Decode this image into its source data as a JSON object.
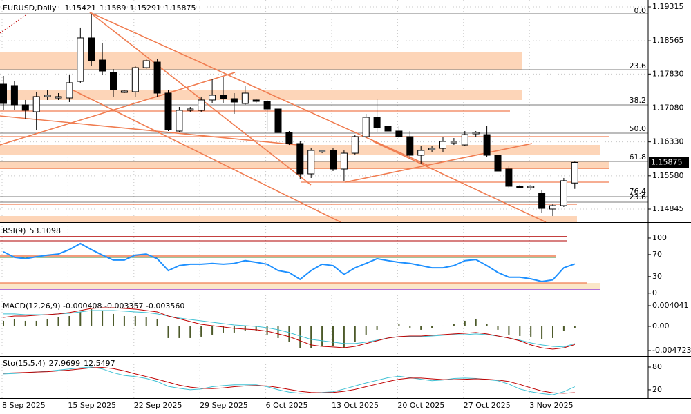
{
  "chart_data": [
    {
      "type": "candlestick",
      "title": "EURUSD,Daily",
      "categories": [
        "8 Sep 2025",
        null,
        null,
        null,
        null,
        null,
        "15 Sep 2025",
        null,
        null,
        null,
        null,
        null,
        "22 Sep 2025",
        null,
        null,
        null,
        null,
        null,
        "29 Sep 2025",
        null,
        null,
        null,
        null,
        null,
        "6 Oct 2025",
        null,
        null,
        null,
        null,
        null,
        "13 Oct 2025",
        null,
        null,
        null,
        null,
        null,
        "20 Oct 2025",
        null,
        null,
        null,
        null,
        null,
        "27 Oct 2025",
        null,
        null,
        null,
        null,
        null,
        "3 Nov 2025",
        null,
        null,
        null,
        null
      ],
      "open": [
        1.17606,
        1.17576,
        1.17149,
        1.16996,
        1.17332,
        1.17301,
        1.17301,
        1.17667,
        1.18629,
        1.1814,
        1.17865,
        1.17423,
        1.17439,
        1.17972,
        1.18094,
        1.17408,
        1.16569,
        1.17027,
        1.17027,
        1.17256,
        1.17362,
        1.17286,
        1.17179,
        1.17256,
        1.17225,
        1.17057,
        1.16538,
        1.16294,
        1.15623,
        1.16111,
        1.16141,
        1.1573,
        1.1608,
        1.16447,
        1.16874,
        1.16676,
        1.16569,
        1.16447,
        1.16035,
        1.16157,
        1.16187,
        1.16309,
        1.16263,
        1.16508,
        1.16492,
        1.16035,
        1.1573,
        1.15349,
        1.15318,
        1.15196,
        1.14845,
        1.14921,
        1.15421
      ],
      "high": [
        1.17789,
        1.17667,
        1.17256,
        1.17439,
        1.17484,
        1.17408,
        1.1782,
        1.18858,
        1.19163,
        1.18522,
        1.17942,
        1.17484,
        1.18018,
        1.18171,
        1.18171,
        1.17484,
        1.17103,
        1.17103,
        1.17332,
        1.17713,
        1.17759,
        1.17408,
        1.17561,
        1.17286,
        1.17256,
        1.17179,
        1.16569,
        1.1634,
        1.16187,
        1.16157,
        1.16187,
        1.16141,
        1.16492,
        1.1695,
        1.17286,
        1.16676,
        1.16676,
        1.16569,
        1.16233,
        1.16233,
        1.16447,
        1.16416,
        1.16569,
        1.16569,
        1.16676,
        1.1608,
        1.15806,
        1.1538,
        1.1538,
        1.15272,
        1.14952,
        1.15532,
        1.1589
      ],
      "low": [
        1.17027,
        1.17027,
        1.16843,
        1.16599,
        1.17256,
        1.17256,
        1.1721,
        1.17637,
        1.18018,
        1.1782,
        1.17332,
        1.17408,
        1.17332,
        1.17942,
        1.17332,
        1.16569,
        1.16538,
        1.16996,
        1.16996,
        1.17179,
        1.17179,
        1.1695,
        1.17149,
        1.17179,
        1.16569,
        1.16492,
        1.16263,
        1.15501,
        1.15532,
        1.1608,
        1.15684,
        1.15471,
        1.16035,
        1.16416,
        1.16538,
        1.16538,
        1.16416,
        1.15959,
        1.15837,
        1.16111,
        1.16111,
        1.16263,
        1.16233,
        1.16447,
        1.15989,
        1.15532,
        1.15318,
        1.15318,
        1.15272,
        1.14768,
        1.14692,
        1.14891,
        1.15291
      ],
      "close": [
        1.17179,
        1.17149,
        1.17027,
        1.17332,
        1.17362,
        1.17332,
        1.17637,
        1.18629,
        1.18125,
        1.17896,
        1.17484,
        1.17454,
        1.17972,
        1.18125,
        1.17408,
        1.16599,
        1.17027,
        1.17057,
        1.17256,
        1.17362,
        1.17286,
        1.1721,
        1.17408,
        1.17225,
        1.17057,
        1.16538,
        1.16294,
        1.15623,
        1.16141,
        1.16141,
        1.1573,
        1.1608,
        1.16447,
        1.16874,
        1.16645,
        1.16569,
        1.16447,
        1.16035,
        1.16141,
        1.16187,
        1.1634,
        1.1634,
        1.16492,
        1.16538,
        1.16035,
        1.15684,
        1.15349,
        1.15318,
        1.15349,
        1.1486,
        1.14921,
        1.15471,
        1.15875
      ],
      "up_color": "#ffffff",
      "down_color": "#000000",
      "ylim": [
        1.14555,
        1.19437
      ],
      "yticks": [
        1.19315,
        1.18565,
        {
          "value": 1.1783,
          "label": "1.17830"
        },
        {
          "value": 1.1708,
          "label": "1.17080"
        },
        {
          "value": 1.1633,
          "label": "1.16330"
        },
        {
          "value": 1.1558,
          "label": "1.15580"
        },
        1.14845
      ],
      "annotations": [
        "0.0",
        "23.6",
        "38.2",
        "50.0",
        "61.8",
        "76.4",
        "23.6"
      ],
      "grid": true
    },
    {
      "type": "line",
      "title": "RSI(9)",
      "lines": [
        {
          "color": "#1e90ff",
          "values": [
            75,
            65,
            62.5,
            66,
            69,
            71,
            79,
            90,
            79,
            69,
            60,
            60,
            69,
            71,
            62.5,
            41,
            50,
            52.5,
            52.5,
            54,
            52.5,
            54,
            59,
            56,
            52.5,
            41,
            37.5,
            25,
            41,
            52.5,
            50,
            34,
            46,
            54,
            62.5,
            59,
            56,
            54,
            50,
            46,
            46,
            50,
            59,
            61,
            50,
            37.5,
            29,
            29,
            26,
            21,
            24,
            46,
            53.1098
          ]
        }
      ],
      "ylim": [
        -9,
        125
      ],
      "yticks": [
        100,
        70,
        30,
        0
      ],
      "grid": false
    },
    {
      "type": "bar",
      "title": "MACD(12,26,9) -0.000408 -0.003357 -0.003560",
      "color": "#4d5a2a",
      "values": [
        0.00108,
        0.00148,
        0.00108,
        0.00108,
        0.00148,
        0.00175,
        0.00202,
        0.00283,
        0.00337,
        0.0031,
        0.00243,
        0.00202,
        0.00202,
        0.00175,
        0.00148,
        -0.00229,
        -0.00229,
        -0.00229,
        -0.00202,
        -0.00162,
        -0.00121,
        -0.00121,
        -0.00094,
        -0.00094,
        -0.00162,
        -0.00229,
        -0.00297,
        -0.00431,
        -0.00431,
        -0.00391,
        -0.00391,
        -0.00431,
        -0.00297,
        -0.00162,
        -0.00067,
        0.00013,
        0.0004,
        -0.00027,
        -0.00067,
        -0.0004,
        0.00013,
        0.0004,
        0.00108,
        0.00148,
        0.0004,
        -0.00067,
        -0.00162,
        -0.00189,
        -0.00202,
        -0.00256,
        -0.00229,
        -0.00094,
        -0.000408
      ],
      "lines": [
        {
          "color": "#3fc1d4",
          "values": [
            0.00243,
            0.00243,
            0.00229,
            0.00229,
            0.00229,
            0.00243,
            0.00256,
            0.00283,
            0.0031,
            0.0031,
            0.0031,
            0.00297,
            0.00283,
            0.0027,
            0.00243,
            0.00202,
            0.00162,
            0.00135,
            0.00108,
            0.00081,
            0.00054,
            0.00027,
            0.00013,
            0,
            -0.00027,
            -0.00067,
            -0.00121,
            -0.00189,
            -0.00256,
            -0.00283,
            -0.0031,
            -0.00337,
            -0.00337,
            -0.0031,
            -0.0027,
            -0.00229,
            -0.00202,
            -0.00202,
            -0.00202,
            -0.00189,
            -0.00175,
            -0.00162,
            -0.00162,
            -0.00148,
            -0.00162,
            -0.00189,
            -0.00229,
            -0.0027,
            -0.00324,
            -0.00364,
            -0.00391,
            -0.00404,
            -0.003357
          ]
        },
        {
          "color": "#c00000",
          "values": [
            0.00175,
            0.00202,
            0.00202,
            0.00216,
            0.00229,
            0.00243,
            0.0027,
            0.0031,
            0.0035,
            0.00364,
            0.00364,
            0.0035,
            0.00337,
            0.0031,
            0.00283,
            0.00202,
            0.00148,
            0.00094,
            0.0004,
            0.00013,
            -0.00013,
            -0.0004,
            -0.00054,
            -0.00067,
            -0.00094,
            -0.00148,
            -0.00202,
            -0.00283,
            -0.00364,
            -0.00391,
            -0.00404,
            -0.00418,
            -0.00391,
            -0.00337,
            -0.00283,
            -0.00229,
            -0.00202,
            -0.00189,
            -0.00189,
            -0.00175,
            -0.00162,
            -0.00148,
            -0.00135,
            -0.00121,
            -0.00148,
            -0.00189,
            -0.00229,
            -0.00283,
            -0.00364,
            -0.0042,
            -0.00445,
            -0.0042,
            -0.00356
          ]
        }
      ],
      "ylim": [
        -0.00567,
        0.00512
      ],
      "yticks": [
        0.004041,
        {
          "value": 0,
          "label": "0.00"
        },
        -0.004723
      ],
      "grid": false
    },
    {
      "type": "line",
      "title": "Sto(15,5,4)",
      "lines": [
        {
          "color": "#3fc1d4",
          "values": [
            62,
            63,
            65,
            67,
            69,
            72,
            75,
            78,
            80,
            75,
            65,
            58,
            55,
            50,
            42,
            29,
            24,
            20,
            22,
            28,
            31,
            33,
            33,
            33,
            28,
            20,
            14,
            11,
            12,
            13,
            15,
            22,
            30,
            38,
            45,
            52,
            56,
            52,
            48,
            44,
            46,
            50,
            51,
            50,
            47,
            44,
            35,
            22,
            15,
            10,
            7,
            15,
            27.9699
          ]
        },
        {
          "color": "#c00000",
          "values": [
            64,
            65,
            66,
            67,
            68,
            70,
            72,
            75,
            78,
            79,
            76,
            70,
            62,
            55,
            48,
            40,
            32,
            27,
            24,
            23,
            25,
            28,
            30,
            31,
            30,
            26,
            21,
            16,
            13,
            12,
            13,
            16,
            21,
            28,
            35,
            42,
            48,
            51,
            51,
            49,
            47,
            47,
            48,
            49,
            48,
            46,
            42,
            34,
            25,
            17,
            12,
            11,
            12.5497
          ]
        }
      ],
      "ylim": [
        -2,
        105.5
      ],
      "yticks": [
        80,
        20
      ],
      "grid": false
    }
  ]
}
